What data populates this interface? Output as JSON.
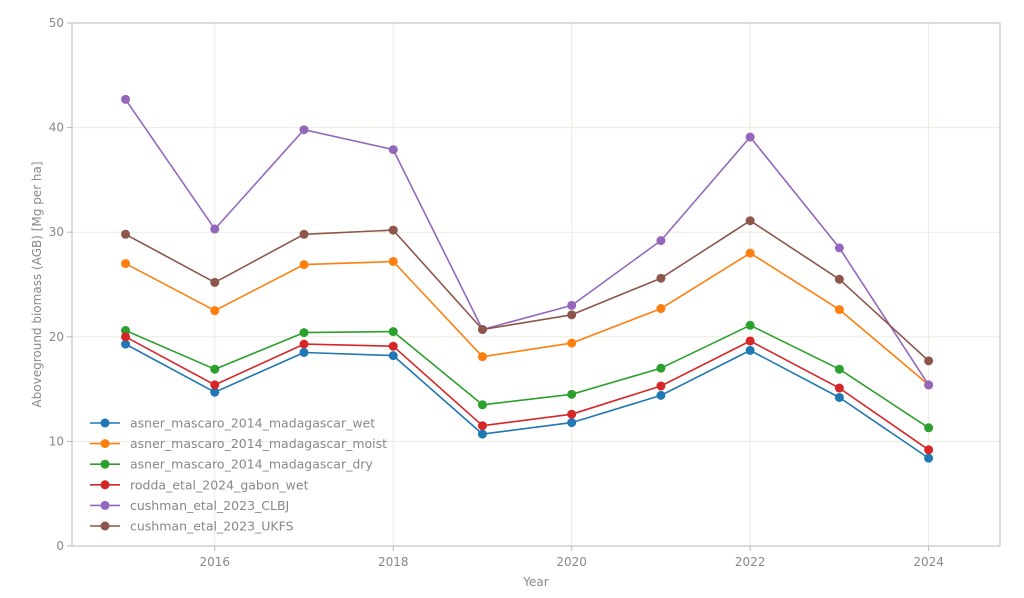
{
  "chart_data": {
    "type": "line",
    "xlabel": "Year",
    "ylabel": "Aboveground biomass (AGB) [Mg per ha]",
    "xlim": [
      2014.4,
      2024.8
    ],
    "ylim": [
      0,
      50
    ],
    "x_ticks": [
      2016,
      2018,
      2020,
      2022,
      2024
    ],
    "y_ticks": [
      0,
      10,
      20,
      30,
      40,
      50
    ],
    "grid": true,
    "legend_position": "lower-left",
    "x": [
      2015,
      2016,
      2017,
      2018,
      2019,
      2020,
      2021,
      2022,
      2023,
      2024
    ],
    "series": [
      {
        "name": "asner_mascaro_2014_madagascar_wet",
        "color": "#1f77b4",
        "values": [
          19.3,
          14.7,
          18.5,
          18.2,
          10.7,
          11.8,
          14.4,
          18.7,
          14.2,
          8.4
        ]
      },
      {
        "name": "asner_mascaro_2014_madagascar_moist",
        "color": "#ff7f0e",
        "values": [
          27.0,
          22.5,
          26.9,
          27.2,
          18.1,
          19.4,
          22.7,
          28.0,
          22.6,
          15.4
        ]
      },
      {
        "name": "asner_mascaro_2014_madagascar_dry",
        "color": "#2ca02c",
        "values": [
          20.6,
          16.9,
          20.4,
          20.5,
          13.5,
          14.5,
          17.0,
          21.1,
          16.9,
          11.3
        ]
      },
      {
        "name": "rodda_etal_2024_gabon_wet",
        "color": "#d62728",
        "values": [
          20.0,
          15.4,
          19.3,
          19.1,
          11.5,
          12.6,
          15.3,
          19.6,
          15.1,
          9.2
        ]
      },
      {
        "name": "cushman_etal_2023_CLBJ",
        "color": "#9467bd",
        "values": [
          42.7,
          30.3,
          39.8,
          37.9,
          20.7,
          23.0,
          29.2,
          39.1,
          28.5,
          15.4
        ]
      },
      {
        "name": "cushman_etal_2023_UKFS",
        "color": "#8c564b",
        "values": [
          29.8,
          25.2,
          29.8,
          30.2,
          20.7,
          22.1,
          25.6,
          31.1,
          25.5,
          17.7
        ]
      }
    ]
  }
}
